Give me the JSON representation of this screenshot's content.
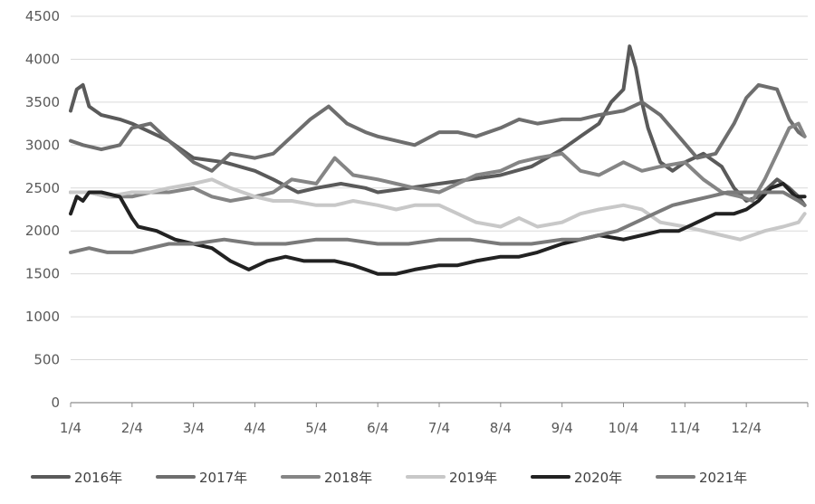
{
  "chart_data": {
    "type": "line",
    "title": "",
    "xlabel": "",
    "ylabel": "",
    "ylim": [
      0,
      4500
    ],
    "yticks": [
      0,
      500,
      1000,
      1500,
      2000,
      2500,
      3000,
      3500,
      4000,
      4500
    ],
    "xlim": [
      1,
      13
    ],
    "x_tick_labels": [
      "1/4",
      "2/4",
      "3/4",
      "4/4",
      "5/4",
      "6/4",
      "7/4",
      "8/4",
      "9/4",
      "10/4",
      "11/4",
      "12/4"
    ],
    "grid": "horizontal",
    "legend_position": "bottom",
    "x_unit": "month (1 = Jan 4)",
    "series": [
      {
        "name": "2016年",
        "color": "#5a5a5a",
        "x": [
          1.0,
          1.1,
          1.2,
          1.3,
          1.5,
          1.8,
          2.0,
          2.3,
          2.6,
          3.0,
          3.5,
          4.0,
          4.3,
          4.7,
          5.0,
          5.4,
          5.8,
          6.0,
          6.5,
          7.0,
          7.5,
          8.0,
          8.5,
          9.0,
          9.3,
          9.6,
          9.8,
          10.0,
          10.1,
          10.2,
          10.3,
          10.4,
          10.5,
          10.6,
          10.8,
          11.0,
          11.3,
          11.6,
          11.8,
          12.0,
          12.2,
          12.5,
          12.7,
          12.85,
          12.95
        ],
        "y": [
          3400,
          3650,
          3700,
          3450,
          3350,
          3300,
          3250,
          3150,
          3050,
          2850,
          2800,
          2700,
          2600,
          2450,
          2500,
          2550,
          2500,
          2450,
          2500,
          2550,
          2600,
          2650,
          2750,
          2950,
          3100,
          3250,
          3500,
          3650,
          4150,
          3900,
          3500,
          3200,
          3000,
          2800,
          2700,
          2800,
          2900,
          2750,
          2500,
          2350,
          2400,
          2600,
          2500,
          2400,
          2300
        ]
      },
      {
        "name": "2017年",
        "color": "#6e6e6e",
        "x": [
          1.0,
          1.2,
          1.5,
          1.8,
          2.0,
          2.3,
          2.6,
          3.0,
          3.3,
          3.6,
          4.0,
          4.3,
          4.6,
          4.9,
          5.2,
          5.5,
          5.8,
          6.0,
          6.3,
          6.6,
          7.0,
          7.3,
          7.6,
          8.0,
          8.3,
          8.6,
          9.0,
          9.3,
          9.6,
          10.0,
          10.3,
          10.6,
          10.9,
          11.2,
          11.5,
          11.8,
          12.0,
          12.2,
          12.5,
          12.7,
          12.85,
          12.95
        ],
        "y": [
          3050,
          3000,
          2950,
          3000,
          3200,
          3250,
          3050,
          2800,
          2700,
          2900,
          2850,
          2900,
          3100,
          3300,
          3450,
          3250,
          3150,
          3100,
          3050,
          3000,
          3150,
          3150,
          3100,
          3200,
          3300,
          3250,
          3300,
          3300,
          3350,
          3400,
          3500,
          3350,
          3100,
          2850,
          2900,
          3250,
          3550,
          3700,
          3650,
          3300,
          3150,
          3100
        ]
      },
      {
        "name": "2018年",
        "color": "#858585",
        "x": [
          1.0,
          1.3,
          1.6,
          2.0,
          2.3,
          2.6,
          3.0,
          3.3,
          3.6,
          4.0,
          4.3,
          4.6,
          5.0,
          5.3,
          5.6,
          6.0,
          6.3,
          6.6,
          7.0,
          7.3,
          7.6,
          8.0,
          8.3,
          8.6,
          9.0,
          9.3,
          9.6,
          10.0,
          10.3,
          10.6,
          11.0,
          11.3,
          11.6,
          11.9,
          12.1,
          12.3,
          12.5,
          12.7,
          12.85,
          12.95
        ],
        "y": [
          2450,
          2450,
          2400,
          2400,
          2450,
          2450,
          2500,
          2400,
          2350,
          2400,
          2450,
          2600,
          2550,
          2850,
          2650,
          2600,
          2550,
          2500,
          2450,
          2550,
          2650,
          2700,
          2800,
          2850,
          2900,
          2700,
          2650,
          2800,
          2700,
          2750,
          2800,
          2600,
          2450,
          2400,
          2350,
          2600,
          2900,
          3200,
          3250,
          3100
        ]
      },
      {
        "name": "2019年",
        "color": "#c8c8c8",
        "x": [
          1.0,
          1.3,
          1.6,
          2.0,
          2.3,
          2.6,
          3.0,
          3.3,
          3.6,
          4.0,
          4.3,
          4.6,
          5.0,
          5.3,
          5.6,
          6.0,
          6.3,
          6.6,
          7.0,
          7.3,
          7.6,
          8.0,
          8.3,
          8.6,
          9.0,
          9.3,
          9.6,
          10.0,
          10.3,
          10.6,
          11.0,
          11.3,
          11.6,
          11.9,
          12.1,
          12.3,
          12.6,
          12.85,
          12.95
        ],
        "y": [
          2450,
          2450,
          2400,
          2450,
          2450,
          2500,
          2550,
          2600,
          2500,
          2400,
          2350,
          2350,
          2300,
          2300,
          2350,
          2300,
          2250,
          2300,
          2300,
          2200,
          2100,
          2050,
          2150,
          2050,
          2100,
          2200,
          2250,
          2300,
          2250,
          2100,
          2050,
          2000,
          1950,
          1900,
          1950,
          2000,
          2050,
          2100,
          2200
        ]
      },
      {
        "name": "2020年",
        "color": "#222222",
        "x": [
          1.0,
          1.1,
          1.2,
          1.3,
          1.5,
          1.8,
          2.0,
          2.1,
          2.4,
          2.7,
          3.0,
          3.3,
          3.6,
          3.9,
          4.2,
          4.5,
          4.8,
          5.0,
          5.3,
          5.6,
          5.8,
          6.0,
          6.3,
          6.6,
          7.0,
          7.3,
          7.6,
          8.0,
          8.3,
          8.6,
          9.0,
          9.3,
          9.6,
          10.0,
          10.3,
          10.6,
          10.9,
          11.2,
          11.5,
          11.8,
          12.0,
          12.2,
          12.4,
          12.6,
          12.8,
          12.95
        ],
        "y": [
          2200,
          2400,
          2350,
          2450,
          2450,
          2400,
          2150,
          2050,
          2000,
          1900,
          1850,
          1800,
          1650,
          1550,
          1650,
          1700,
          1650,
          1650,
          1650,
          1600,
          1550,
          1500,
          1500,
          1550,
          1600,
          1600,
          1650,
          1700,
          1700,
          1750,
          1850,
          1900,
          1950,
          1900,
          1950,
          2000,
          2000,
          2100,
          2200,
          2200,
          2250,
          2350,
          2500,
          2550,
          2400,
          2400
        ]
      },
      {
        "name": "2021年",
        "color": "#7a7a7a",
        "x": [
          1.0,
          1.3,
          1.6,
          2.0,
          2.3,
          2.6,
          3.0,
          3.5,
          4.0,
          4.5,
          5.0,
          5.5,
          6.0,
          6.5,
          7.0,
          7.5,
          8.0,
          8.5,
          9.0,
          9.3,
          9.6,
          9.9,
          10.2,
          10.5,
          10.8,
          11.1,
          11.4,
          11.7,
          12.0,
          12.3,
          12.6,
          12.85,
          12.95
        ],
        "y": [
          1750,
          1800,
          1750,
          1750,
          1800,
          1850,
          1850,
          1900,
          1850,
          1850,
          1900,
          1900,
          1850,
          1850,
          1900,
          1900,
          1850,
          1850,
          1900,
          1900,
          1950,
          2000,
          2100,
          2200,
          2300,
          2350,
          2400,
          2450,
          2450,
          2450,
          2450,
          2350,
          2300
        ]
      }
    ]
  }
}
